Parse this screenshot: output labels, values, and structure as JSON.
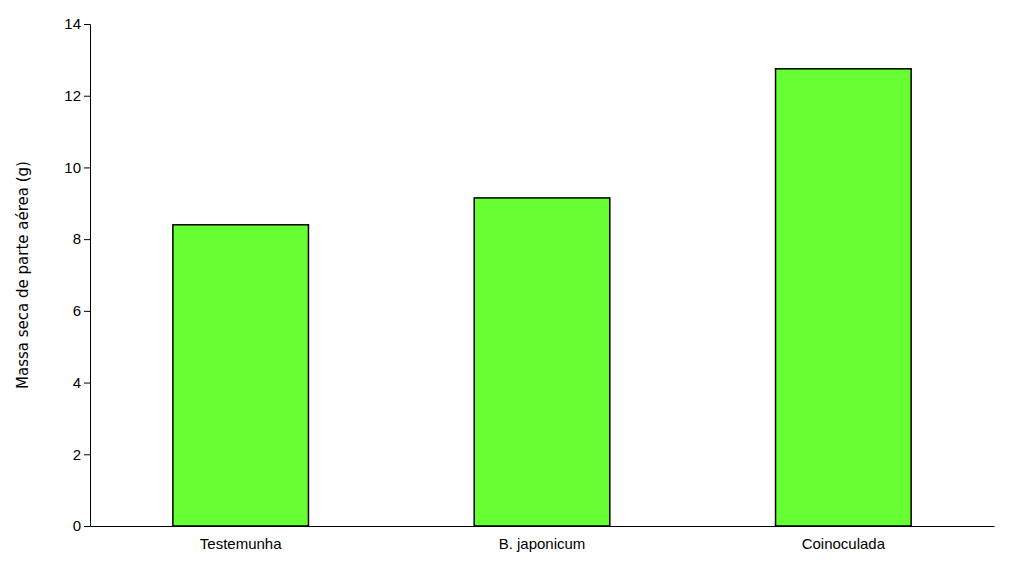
{
  "chart_data": {
    "type": "bar",
    "categories": [
      "Testemunha",
      "B. japonicum",
      "Coinoculada"
    ],
    "values": [
      8.4,
      9.15,
      12.75
    ],
    "color": "#66ff33",
    "ylabel": "Massa seca de parte aérea (g)",
    "ylim": [
      0,
      14
    ],
    "yticks": [
      0,
      2,
      4,
      6,
      8,
      10,
      12,
      14
    ],
    "grid": false
  }
}
